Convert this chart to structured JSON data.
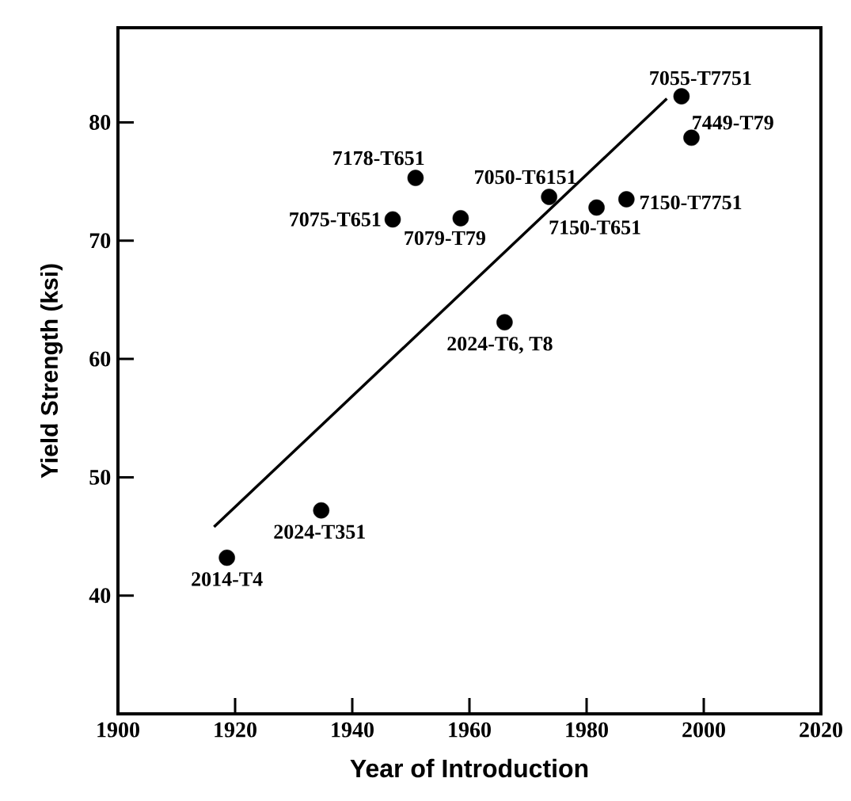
{
  "chart_data": {
    "type": "scatter",
    "xlabel": "Year of Introduction",
    "ylabel": "Yield Strength (ksi)",
    "xlim": [
      1900,
      2020
    ],
    "ylim": [
      30,
      88
    ],
    "xticks": [
      1900,
      1920,
      1940,
      1960,
      1980,
      2000,
      2020
    ],
    "yticks": [
      40,
      50,
      60,
      70,
      80
    ],
    "grid": false,
    "series": [
      {
        "color": "#000000",
        "marker": "circle",
        "x": [
          1918.6,
          1934.7,
          1946.9,
          1950.8,
          1958.5,
          1973.6,
          1981.7,
          1986.8,
          1996.2,
          1997.9,
          1966.0
        ],
        "values": [
          43.2,
          47.2,
          71.8,
          75.3,
          71.9,
          73.7,
          72.8,
          73.5,
          82.2,
          78.7,
          63.1
        ]
      },
      {
        "type": "line",
        "color": "#000000",
        "marker": "none",
        "x": [
          1916.4,
          1993.7
        ],
        "values": [
          45.8,
          82.0
        ]
      }
    ],
    "annotations": [
      {
        "text": "2014-T4",
        "x": 1918.6,
        "y": 43.2
      },
      {
        "text": "2024-T351",
        "x": 1934.7,
        "y": 47.2
      },
      {
        "text": "7075-T651",
        "x": 1946.9,
        "y": 71.8
      },
      {
        "text": "7178-T651",
        "x": 1950.8,
        "y": 75.3
      },
      {
        "text": "7079-T79",
        "x": 1958.5,
        "y": 71.9
      },
      {
        "text": "7050-T6151",
        "x": 1973.6,
        "y": 73.7
      },
      {
        "text": "7150-T651",
        "x": 1981.7,
        "y": 72.8
      },
      {
        "text": "7150-T7751",
        "x": 1986.8,
        "y": 73.5
      },
      {
        "text": "7055-T7751",
        "x": 1996.2,
        "y": 82.2
      },
      {
        "text": "7449-T79",
        "x": 1997.9,
        "y": 78.7
      },
      {
        "text": "2024-T6, T8",
        "x": 1966.0,
        "y": 63.1
      }
    ]
  }
}
